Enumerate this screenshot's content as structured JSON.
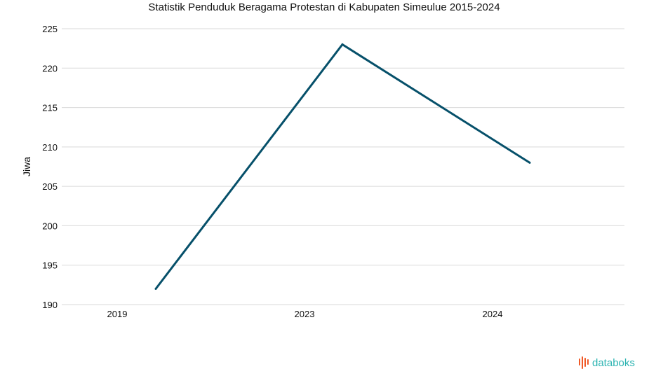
{
  "chart_data": {
    "type": "line",
    "title": "Statistik Penduduk Beragama Protestan di Kabupaten Simeulue 2015-2024",
    "xlabel": "",
    "ylabel": "Jiwa",
    "categories": [
      "2019",
      "2023",
      "2024"
    ],
    "series": [
      {
        "values": [
          192,
          223,
          208
        ]
      }
    ],
    "ylim": [
      190,
      225
    ],
    "yticks": [
      190,
      195,
      200,
      205,
      210,
      215,
      220,
      225
    ],
    "grid": true,
    "legend": "none"
  },
  "colors": {
    "series": "#06506a",
    "grid": "#d9d9d9",
    "brand_icon": "#f05a28",
    "brand_text": "#2bb3b1"
  },
  "branding": {
    "logo_text": "databoks",
    "icon": "databoks-logo-icon"
  }
}
